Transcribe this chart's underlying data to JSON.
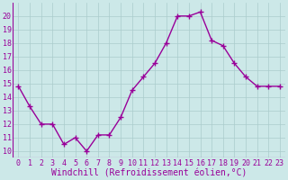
{
  "x": [
    0,
    1,
    2,
    3,
    4,
    5,
    6,
    7,
    8,
    9,
    10,
    11,
    12,
    13,
    14,
    15,
    16,
    17,
    18,
    19,
    20,
    21,
    22,
    23
  ],
  "y": [
    14.8,
    13.3,
    12.0,
    12.0,
    10.5,
    11.0,
    10.0,
    11.2,
    11.2,
    12.5,
    14.5,
    15.5,
    16.5,
    18.0,
    20.0,
    20.0,
    20.3,
    18.2,
    17.8,
    16.5,
    15.5,
    14.8,
    14.8,
    14.8
  ],
  "line_color": "#990099",
  "marker": "+",
  "marker_size": 4,
  "marker_lw": 1.0,
  "bg_color": "#cce8e8",
  "grid_color": "#aacccc",
  "xlabel": "Windchill (Refroidissement éolien,°C)",
  "xlabel_color": "#990099",
  "tick_color": "#990099",
  "ylim": [
    9.5,
    21.0
  ],
  "xlim": [
    -0.5,
    23.5
  ],
  "yticks": [
    10,
    11,
    12,
    13,
    14,
    15,
    16,
    17,
    18,
    19,
    20
  ],
  "xticks": [
    0,
    1,
    2,
    3,
    4,
    5,
    6,
    7,
    8,
    9,
    10,
    11,
    12,
    13,
    14,
    15,
    16,
    17,
    18,
    19,
    20,
    21,
    22,
    23
  ],
  "tick_fontsize": 6,
  "xlabel_fontsize": 7,
  "linewidth": 1.0
}
